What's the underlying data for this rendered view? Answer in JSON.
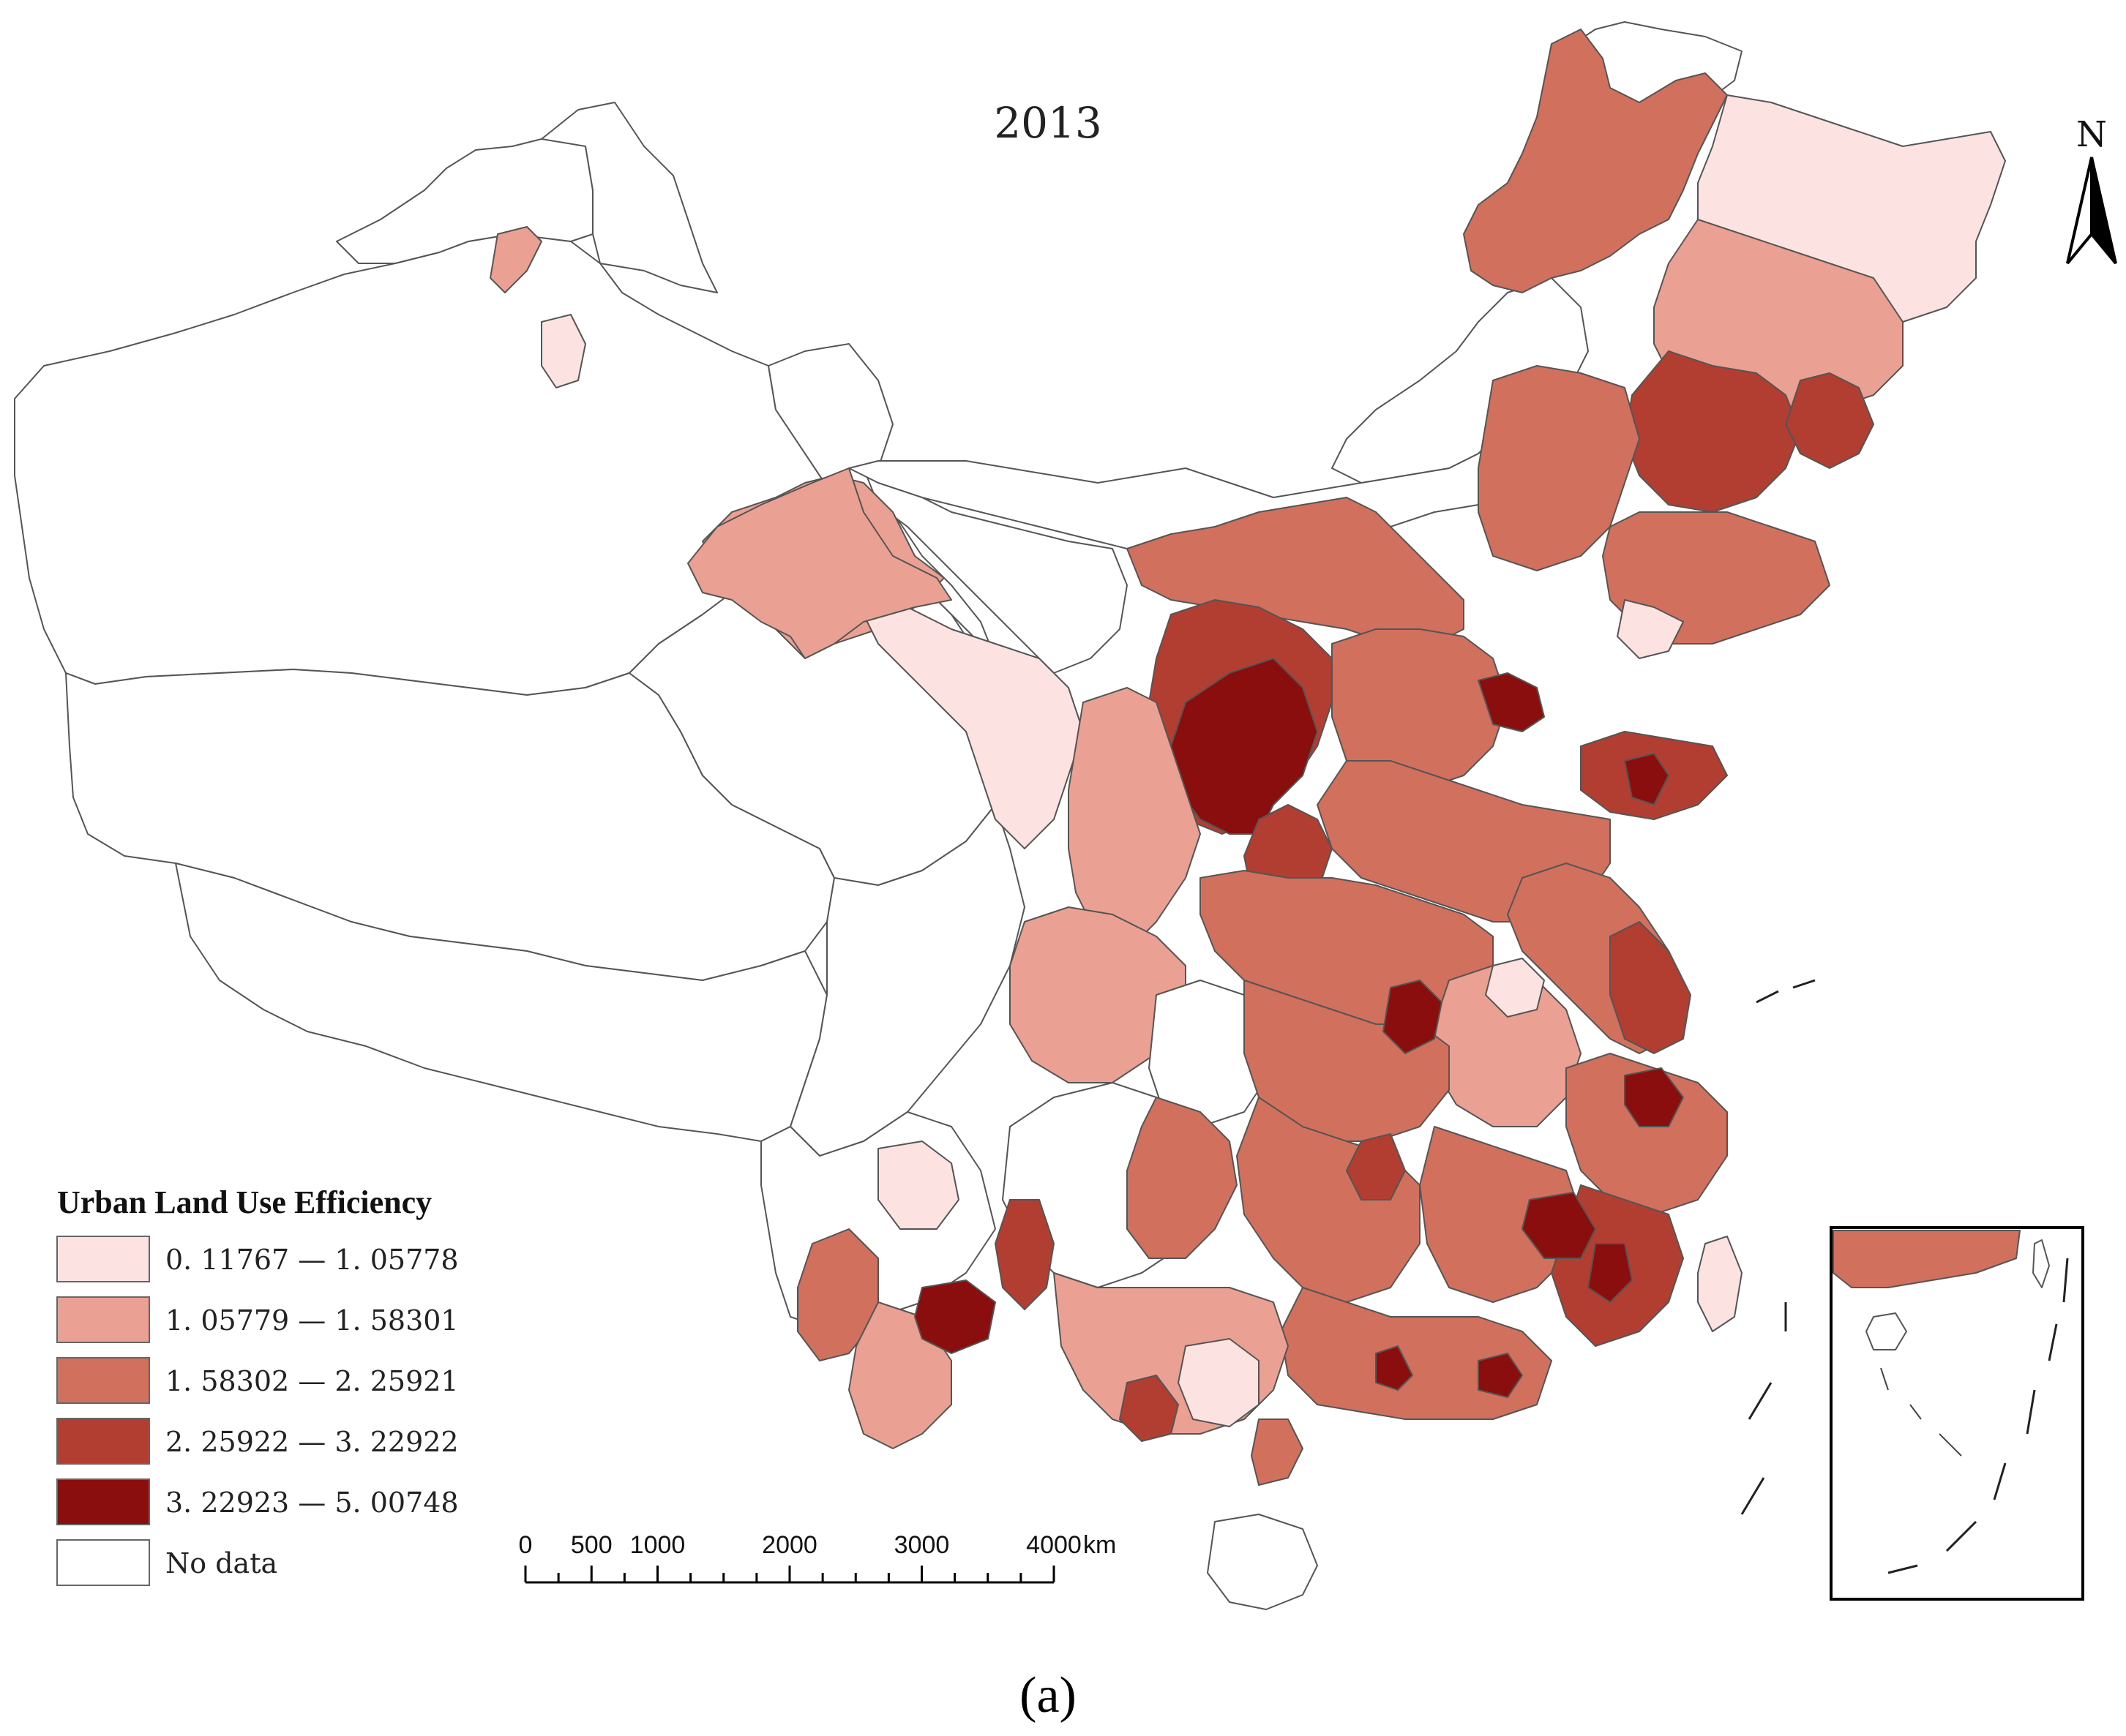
{
  "map": {
    "title": "2013",
    "caption": "(a)",
    "north_label": "N",
    "legend": {
      "title": "Urban Land Use Efficiency",
      "classes": [
        {
          "label": "0. 11767 — 1. 05778",
          "color": "#fde2e2"
        },
        {
          "label": "1. 05779 — 1. 58301",
          "color": "#eaa193"
        },
        {
          "label": "1. 58302 — 2. 25921",
          "color": "#d2705e"
        },
        {
          "label": "2. 25922 — 3. 22922",
          "color": "#b13e31"
        },
        {
          "label": "3. 22923 — 5. 00748",
          "color": "#8b0e0e"
        },
        {
          "label": "No data",
          "color": "#ffffff"
        }
      ]
    },
    "scale_bar": {
      "ticks": [
        "0",
        "500",
        "1000",
        "2000",
        "3000",
        "4000"
      ],
      "unit": "km"
    }
  }
}
